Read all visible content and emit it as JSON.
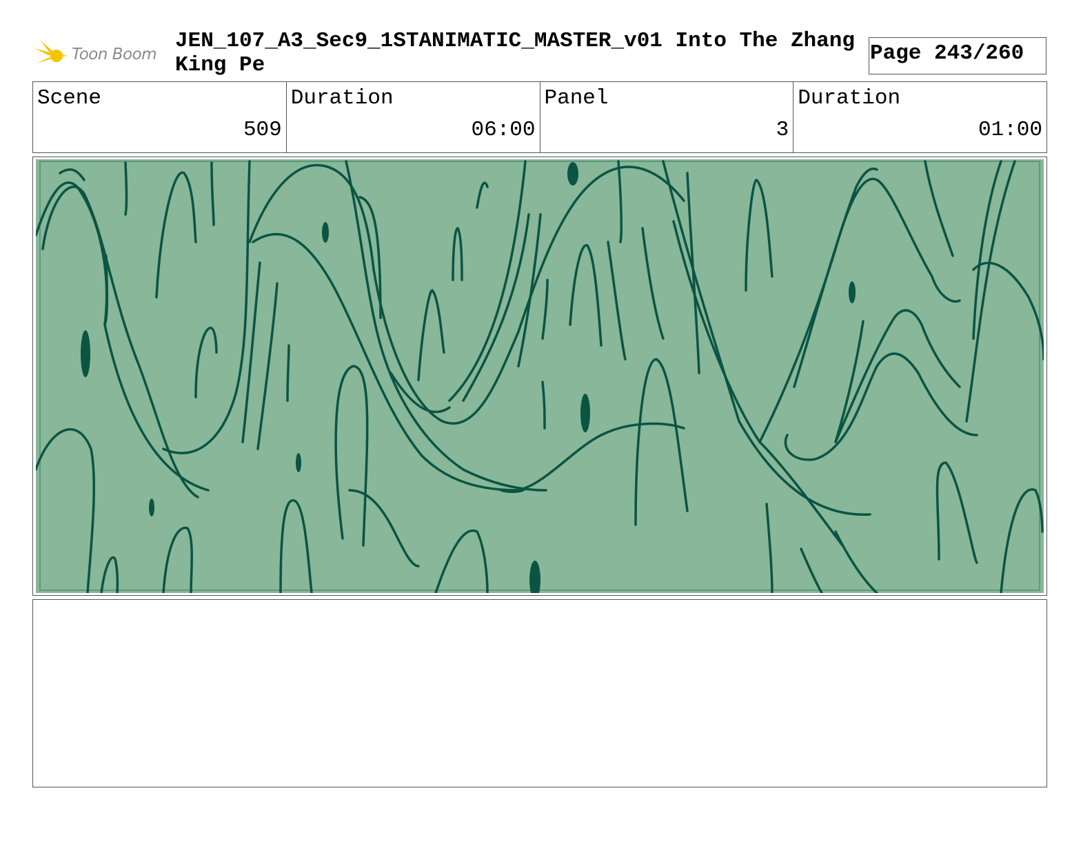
{
  "header": {
    "logo_text": "Toon Boom",
    "title": "JEN_107_A3_Sec9_1STANIMATIC_MASTER_v01  Into The Zhang King Pe",
    "page": "Page 243/260"
  },
  "info": [
    {
      "label": "Scene",
      "value": "509"
    },
    {
      "label": "Duration",
      "value": "06:00"
    },
    {
      "label": "Panel",
      "value": "3"
    },
    {
      "label": "Duration",
      "value": "01:00"
    }
  ],
  "panel": {
    "background_color": "#88b79a",
    "stroke_color": "#0b5443"
  },
  "caption": {
    "text": ""
  }
}
